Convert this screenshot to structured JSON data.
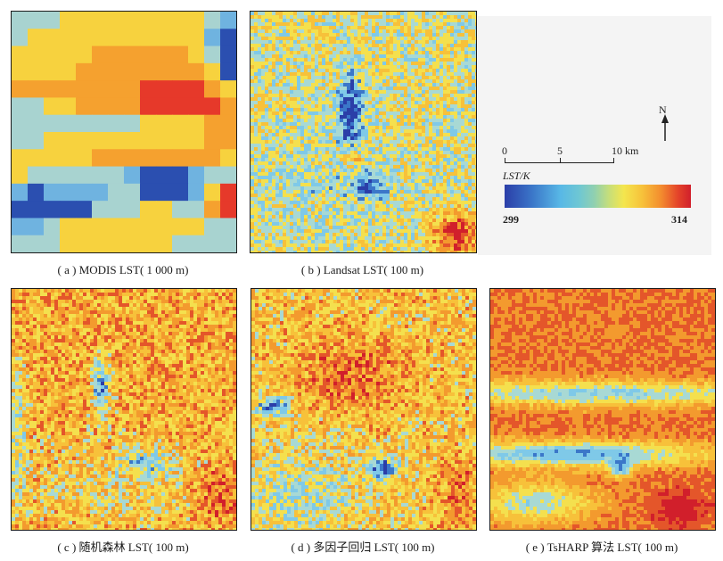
{
  "panels": {
    "a": {
      "caption": "( a )  MODIS LST( 1 000 m)"
    },
    "b": {
      "caption": "( b )  Landsat LST( 100 m)"
    },
    "c": {
      "caption": "( c )  随机森林 LST( 100 m)"
    },
    "d": {
      "caption": "( d )  多因子回归 LST( 100 m)"
    },
    "e": {
      "caption": "( e )  TsHARP 算法 LST( 100 m)"
    }
  },
  "legend": {
    "north_label": "N",
    "scale_ticks": [
      "0",
      "5",
      "10 km"
    ],
    "unit": "LST/K",
    "min_label": "299",
    "max_label": "314"
  },
  "colors": {
    "deep_blue": "#2b3ea8",
    "blue": "#3b77c9",
    "light_blue": "#7fc9e8",
    "yellow": "#f4e04e",
    "orange": "#f39a2e",
    "red": "#d9262b"
  },
  "modis_grid": [
    [
      2,
      2,
      2,
      3,
      3,
      3,
      3,
      3,
      3,
      3,
      3,
      3,
      2,
      1
    ],
    [
      2,
      3,
      3,
      3,
      3,
      3,
      3,
      3,
      3,
      3,
      3,
      3,
      1,
      0
    ],
    [
      3,
      3,
      3,
      3,
      3,
      4,
      4,
      4,
      4,
      4,
      4,
      3,
      2,
      0
    ],
    [
      3,
      3,
      3,
      3,
      4,
      4,
      4,
      4,
      4,
      4,
      4,
      4,
      3,
      0
    ],
    [
      4,
      4,
      4,
      4,
      4,
      4,
      4,
      4,
      5,
      5,
      5,
      5,
      4,
      3
    ],
    [
      2,
      2,
      3,
      3,
      4,
      4,
      4,
      4,
      5,
      5,
      5,
      5,
      5,
      4
    ],
    [
      2,
      2,
      2,
      2,
      2,
      2,
      2,
      2,
      3,
      3,
      3,
      3,
      4,
      4
    ],
    [
      2,
      2,
      3,
      3,
      3,
      3,
      3,
      3,
      3,
      3,
      3,
      3,
      4,
      4
    ],
    [
      3,
      3,
      3,
      3,
      3,
      4,
      4,
      4,
      4,
      4,
      4,
      4,
      4,
      3
    ],
    [
      3,
      2,
      2,
      2,
      2,
      2,
      2,
      1,
      0,
      0,
      0,
      1,
      2,
      2
    ],
    [
      1,
      0,
      1,
      1,
      1,
      1,
      2,
      2,
      0,
      0,
      0,
      1,
      3,
      5
    ],
    [
      0,
      0,
      0,
      0,
      0,
      2,
      2,
      2,
      3,
      3,
      2,
      2,
      4,
      5
    ],
    [
      1,
      1,
      2,
      3,
      3,
      3,
      3,
      3,
      3,
      3,
      3,
      3,
      2,
      2
    ],
    [
      2,
      2,
      2,
      3,
      3,
      3,
      3,
      3,
      3,
      3,
      2,
      2,
      2,
      2
    ]
  ]
}
